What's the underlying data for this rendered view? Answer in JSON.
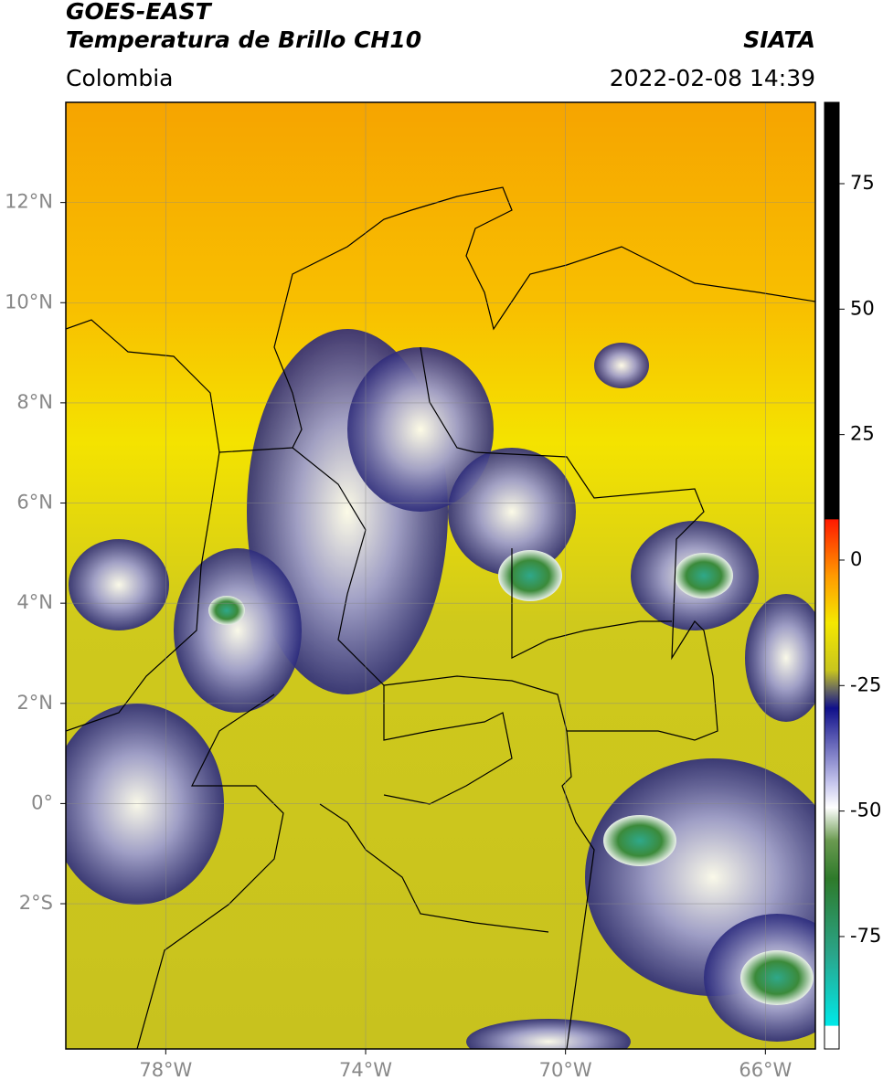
{
  "header": {
    "title": "GOES-EAST",
    "subtitle": "Temperatura de Brillo CH10",
    "agency": "SIATA",
    "region": "Colombia",
    "timestamp": "2022-02-08 14:39"
  },
  "map": {
    "lonlim": [
      -80,
      -65
    ],
    "latlim": [
      -4.9,
      14
    ],
    "lonticks": [
      {
        "value": -78,
        "label": "78°W"
      },
      {
        "value": -74,
        "label": "74°W"
      },
      {
        "value": -70,
        "label": "70°W"
      },
      {
        "value": -66,
        "label": "66°W"
      }
    ],
    "latticks": [
      {
        "value": 12,
        "label": "12°N"
      },
      {
        "value": 10,
        "label": "10°N"
      },
      {
        "value": 8,
        "label": "8°N"
      },
      {
        "value": 6,
        "label": "6°N"
      },
      {
        "value": 4,
        "label": "4°N"
      },
      {
        "value": 2,
        "label": "2°N"
      },
      {
        "value": 0,
        "label": "0°"
      },
      {
        "value": -2,
        "label": "2°S"
      }
    ],
    "grid": true
  },
  "colorbar": {
    "lim": [
      -97.4,
      91.2
    ],
    "ticks": [
      75,
      50,
      25,
      0,
      -25,
      -50,
      -75
    ]
  }
}
